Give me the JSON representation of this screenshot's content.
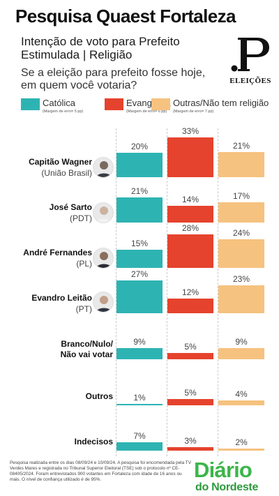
{
  "header": {
    "title": "Pesquisa Quaest Fortaleza",
    "subtitle_line1": "Intenção de voto para Prefeito",
    "subtitle_line2": "Estimulada | Religião",
    "question_line1": "Se a eleição para prefeito fosse hoje,",
    "question_line2": "em quem você votaria?"
  },
  "brand": {
    "mark": ".P",
    "label": "ELEIÇÕES"
  },
  "colors": {
    "catolica": "#2eb3b3",
    "evangelica": "#e5432d",
    "outras": "#f6c27f",
    "logo_green": "#3cb54a"
  },
  "legend": [
    {
      "label": "Católica",
      "margin": "(Margem de erro= 5 pp)"
    },
    {
      "label": "Evangélica",
      "margin": "(Margem de erro= 6 pp)"
    },
    {
      "label": "Outras/Não tem religião",
      "margin": "(Margem de erro= 7 pp)"
    }
  ],
  "rows": [
    {
      "name": "Capitão Wagner",
      "party": "(União Brasil)",
      "avatar": "candidate-photo"
    },
    {
      "name": "José Sarto",
      "party": "(PDT)",
      "avatar": "candidate-photo"
    },
    {
      "name": "André Fernandes",
      "party": "(PL)",
      "avatar": "candidate-photo"
    },
    {
      "name": "Evandro Leitão",
      "party": "(PT)",
      "avatar": "candidate-photo"
    },
    {
      "name_line1": "Branco/Nulo/",
      "name_line2": "Não vai votar"
    },
    {
      "name": "Outros"
    },
    {
      "name": "Indecisos"
    }
  ],
  "chart_data": {
    "type": "bar",
    "categories": [
      "Capitão Wagner",
      "José Sarto",
      "André Fernandes",
      "Evandro Leitão",
      "Branco/Nulo/Não vai votar",
      "Outros",
      "Indecisos"
    ],
    "series": [
      {
        "name": "Católica",
        "values": [
          20,
          21,
          15,
          27,
          9,
          1,
          7
        ],
        "labels": [
          "20%",
          "21%",
          "15%",
          "27%",
          "9%",
          "1%",
          "7%"
        ]
      },
      {
        "name": "Evangélica",
        "values": [
          33,
          14,
          28,
          12,
          5,
          5,
          3
        ],
        "labels": [
          "33%",
          "14%",
          "28%",
          "12%",
          "5%",
          "5%",
          "3%"
        ]
      },
      {
        "name": "Outras/Não tem religião",
        "values": [
          21,
          17,
          24,
          23,
          9,
          4,
          2
        ],
        "labels": [
          "21%",
          "17%",
          "24%",
          "23%",
          "9%",
          "4%",
          "2%"
        ]
      }
    ],
    "ylabel": "",
    "ylim": [
      0,
      33
    ]
  },
  "footnote": "Pesquisa realizada entre os dias 08/09/24 e 10/09/24. A pesquisa foi encomendada pela TV Verdes Mares e registrada no Tribunal Superior Eleitoral (TSE) sob o protocolo nº CE-08405/2024. Foram entrevistados 900 votantes em Fortaleza com idade de 16 anos ou mais. O nível de confiança utilizado é de 95%.",
  "logo": {
    "line1": "Diário",
    "line2": "do Nordeste"
  }
}
